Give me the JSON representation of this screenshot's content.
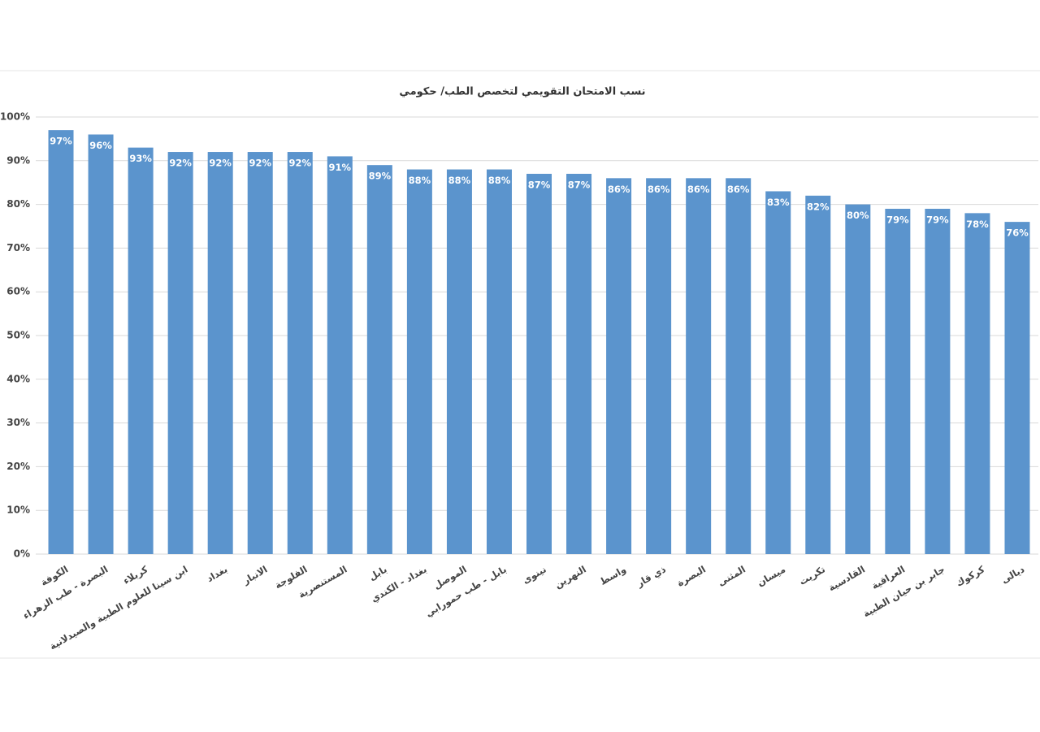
{
  "chart_data": {
    "type": "bar",
    "title": "نسب الامتحان التقويمي لتخصص الطب/ حكومي",
    "categories": [
      "الكوفة",
      "البصرة - طب الزهراء",
      "كربلاء",
      "ابن سينا للعلوم الطبية والصيدلانية",
      "بغداد",
      "الانبار",
      "الفلوجة",
      "المستنصرية",
      "بابل",
      "بغداد - الكندي",
      "الموصل",
      "بابل - طب حمورابي",
      "نينوى",
      "النهرين",
      "واسط",
      "ذي قار",
      "البصرة",
      "المثنى",
      "ميسان",
      "تكريت",
      "القادسية",
      "العراقية",
      "جابر بن حيان الطبية",
      "كركوك",
      "ديالى"
    ],
    "values": [
      97,
      96,
      93,
      92,
      92,
      92,
      92,
      91,
      89,
      88,
      88,
      88,
      87,
      87,
      86,
      86,
      86,
      86,
      83,
      82,
      80,
      79,
      79,
      78,
      76
    ],
    "value_labels": [
      "97%",
      "96%",
      "93%",
      "92%",
      "92%",
      "92%",
      "92%",
      "91%",
      "89%",
      "88%",
      "88%",
      "88%",
      "87%",
      "87%",
      "86%",
      "86%",
      "86%",
      "86%",
      "83%",
      "82%",
      "80%",
      "79%",
      "79%",
      "78%",
      "76%"
    ],
    "color": "#5b94cd",
    "ylim": [
      0,
      100
    ],
    "yticks": [
      {
        "value": 0,
        "label": "0%"
      },
      {
        "value": 10,
        "label": "10%"
      },
      {
        "value": 20,
        "label": "20%"
      },
      {
        "value": 30,
        "label": "30%"
      },
      {
        "value": 40,
        "label": "40%"
      },
      {
        "value": 50,
        "label": "50%"
      },
      {
        "value": 60,
        "label": "60%"
      },
      {
        "value": 70,
        "label": "70%"
      },
      {
        "value": 80,
        "label": "80%"
      },
      {
        "value": 90,
        "label": "90%"
      },
      {
        "value": 100,
        "label": "100%"
      }
    ],
    "grid": true
  }
}
